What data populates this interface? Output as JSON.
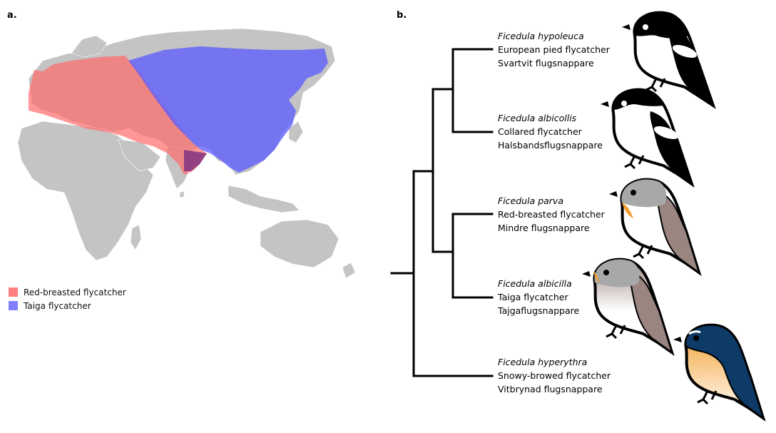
{
  "panels": {
    "a": {
      "label": "a."
    },
    "b": {
      "label": "b."
    }
  },
  "legend": [
    {
      "label": "Red-breasted flycatcher",
      "color": "#ff8080"
    },
    {
      "label": "Taiga flycatcher",
      "color": "#8080ff"
    }
  ],
  "colors": {
    "land": "#c4c4c4",
    "red_range": "#ff6b6b",
    "blue_range": "#5a5aff",
    "tree_line": "#000000"
  },
  "taxa": [
    {
      "scientific": "Ficedula hypoleuca",
      "english": "European pied flycatcher",
      "swedish": "Svartvit flugsnappare",
      "icon": "pied-flycatcher-icon"
    },
    {
      "scientific": "Ficedula albicollis",
      "english": "Collared flycatcher",
      "swedish": "Halsbandsflugsnappare",
      "icon": "collared-flycatcher-icon"
    },
    {
      "scientific": "Ficedula parva",
      "english": "Red-breasted flycatcher",
      "swedish": "Mindre flugsnappare",
      "icon": "red-breasted-flycatcher-icon"
    },
    {
      "scientific": "Ficedula albicilla",
      "english": "Taiga flycatcher",
      "swedish": "Tajgaflugsnappare",
      "icon": "taiga-flycatcher-icon"
    },
    {
      "scientific": "Ficedula hyperythra",
      "english": "Snowy-browed flycatcher",
      "swedish": "Vitbrynad flugsnappare",
      "icon": "snowy-browed-flycatcher-icon"
    }
  ]
}
